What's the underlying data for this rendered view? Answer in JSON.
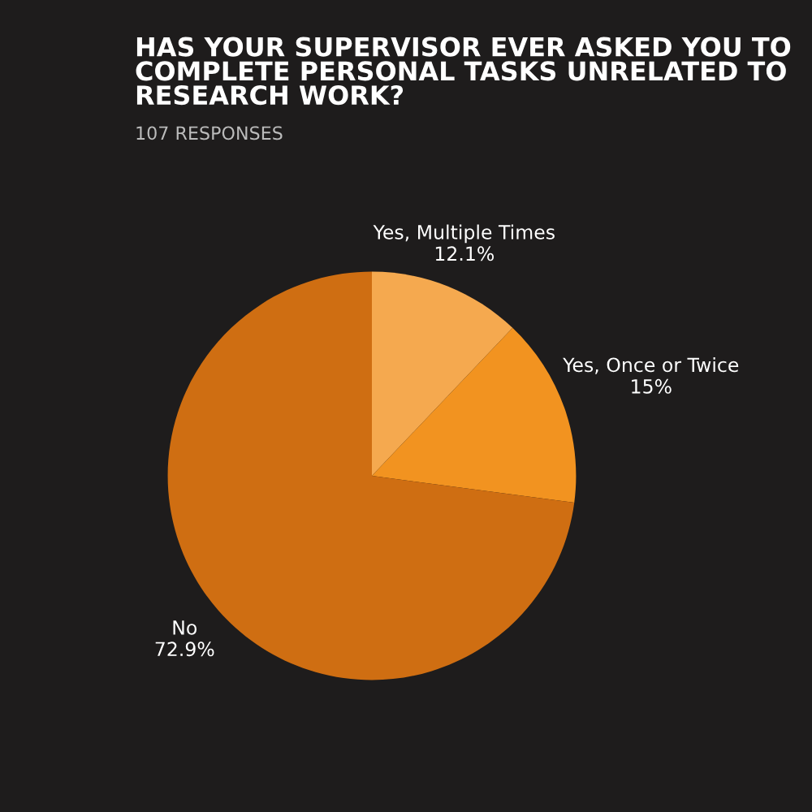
{
  "chart_data": {
    "type": "pie",
    "title": "HAS YOUR SUPERVISOR EVER ASKED YOU TO\nCOMPLETE PERSONAL TASKS UNRELATED TO\nRESEARCH WORK?",
    "subtitle": "107 RESPONSES",
    "categories": [
      "Yes, Multiple Times",
      "Yes, Once or Twice",
      "No"
    ],
    "values": [
      12.1,
      15,
      72.9
    ],
    "colors": [
      "#f5a94f",
      "#f29320",
      "#cf6e12"
    ],
    "value_labels": [
      "12.1%",
      "15%",
      "72.9%"
    ]
  }
}
